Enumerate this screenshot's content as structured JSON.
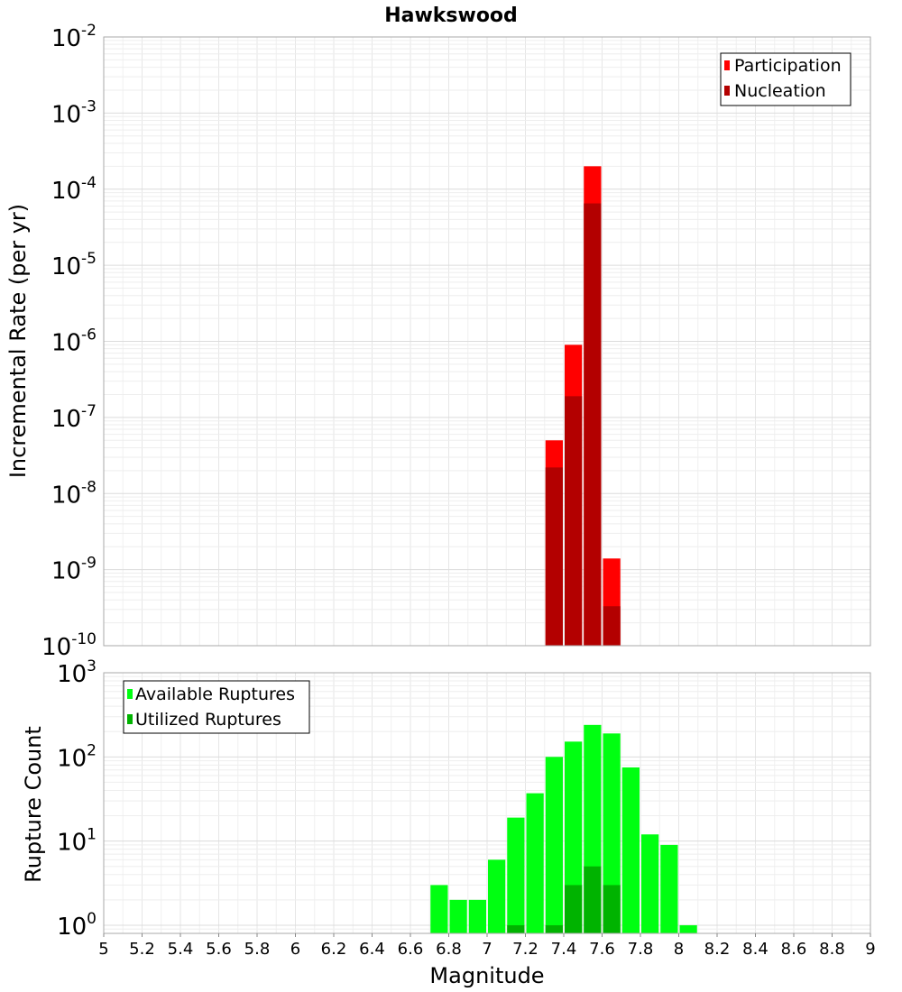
{
  "chart_data": [
    {
      "type": "bar",
      "title": "Hawkswood",
      "ylabel": "Incremental Rate (per yr)",
      "xlabel": "",
      "xlim": [
        5,
        9
      ],
      "ylim": [
        1e-10,
        0.01
      ],
      "yscale": "log",
      "y_ticks": [
        {
          "base": "10",
          "exp": "-10"
        },
        {
          "base": "10",
          "exp": "-9"
        },
        {
          "base": "10",
          "exp": "-8"
        },
        {
          "base": "10",
          "exp": "-7"
        },
        {
          "base": "10",
          "exp": "-6"
        },
        {
          "base": "10",
          "exp": "-5"
        },
        {
          "base": "10",
          "exp": "-4"
        },
        {
          "base": "10",
          "exp": "-3"
        },
        {
          "base": "10",
          "exp": "-2"
        }
      ],
      "bin_width": 0.1,
      "grid": true,
      "legend_position": "top-right",
      "series": [
        {
          "name": "Participation",
          "color": "#ff0000",
          "points": [
            {
              "x": 7.35,
              "y": 5e-08
            },
            {
              "x": 7.45,
              "y": 9e-07
            },
            {
              "x": 7.55,
              "y": 0.0002
            },
            {
              "x": 7.65,
              "y": 1.4e-09
            }
          ]
        },
        {
          "name": "Nucleation",
          "color": "#b30000",
          "points": [
            {
              "x": 7.35,
              "y": 2.2e-08
            },
            {
              "x": 7.45,
              "y": 1.9e-07
            },
            {
              "x": 7.55,
              "y": 6.5e-05
            },
            {
              "x": 7.65,
              "y": 3.3e-10
            }
          ]
        }
      ]
    },
    {
      "type": "bar",
      "title": "",
      "ylabel": "Rupture Count",
      "xlabel": "Magnitude",
      "xlim": [
        5,
        9
      ],
      "ylim": [
        0.8,
        1000
      ],
      "yscale": "log",
      "y_ticks": [
        {
          "value": 1,
          "base": "10",
          "exp": "0"
        },
        {
          "value": 10,
          "base": "10",
          "exp": "1"
        },
        {
          "value": 100,
          "base": "10",
          "exp": "2"
        },
        {
          "value": 1000,
          "base": "10",
          "exp": "3"
        }
      ],
      "x_ticks": [
        "5",
        "5.2",
        "5.4",
        "5.6",
        "5.8",
        "6",
        "6.2",
        "6.4",
        "6.6",
        "6.8",
        "7",
        "7.2",
        "7.4",
        "7.6",
        "7.8",
        "8",
        "8.2",
        "8.4",
        "8.6",
        "8.8",
        "9"
      ],
      "bin_width": 0.1,
      "grid": true,
      "legend_position": "top-left",
      "series": [
        {
          "name": "Available Ruptures",
          "color": "#00ff11",
          "points": [
            {
              "x": 6.75,
              "y": 3
            },
            {
              "x": 6.85,
              "y": 2
            },
            {
              "x": 6.95,
              "y": 2
            },
            {
              "x": 7.05,
              "y": 6
            },
            {
              "x": 7.15,
              "y": 19
            },
            {
              "x": 7.25,
              "y": 37
            },
            {
              "x": 7.35,
              "y": 100
            },
            {
              "x": 7.45,
              "y": 152
            },
            {
              "x": 7.55,
              "y": 240
            },
            {
              "x": 7.65,
              "y": 190
            },
            {
              "x": 7.75,
              "y": 75
            },
            {
              "x": 7.85,
              "y": 12
            },
            {
              "x": 7.95,
              "y": 9
            },
            {
              "x": 8.05,
              "y": 1
            }
          ]
        },
        {
          "name": "Utilized Ruptures",
          "color": "#00b300",
          "points": [
            {
              "x": 7.15,
              "y": 1
            },
            {
              "x": 7.35,
              "y": 1
            },
            {
              "x": 7.45,
              "y": 3
            },
            {
              "x": 7.55,
              "y": 5
            },
            {
              "x": 7.65,
              "y": 3
            }
          ]
        }
      ]
    }
  ]
}
